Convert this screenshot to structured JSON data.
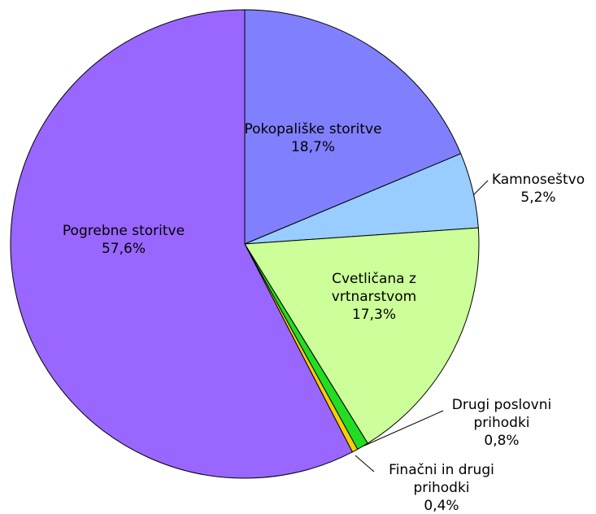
{
  "chart_data": {
    "type": "pie",
    "categories": [
      "Pokopališke storitve",
      "Kamnoseštvo",
      "Cvetličana z vrtnarstvom",
      "Drugi poslovni prihodki",
      "Finačni in drugi prihodki",
      "Pogrebne storitve"
    ],
    "values": [
      18.7,
      5.2,
      17.3,
      0.8,
      0.4,
      57.6
    ],
    "value_labels": [
      "18,7%",
      "5,2%",
      "17,3%",
      "0,8%",
      "0,4%",
      "57,6%"
    ],
    "colors": [
      "#8080ff",
      "#99ccff",
      "#ccff99",
      "#22dd22",
      "#ffcc00",
      "#9966ff"
    ]
  }
}
